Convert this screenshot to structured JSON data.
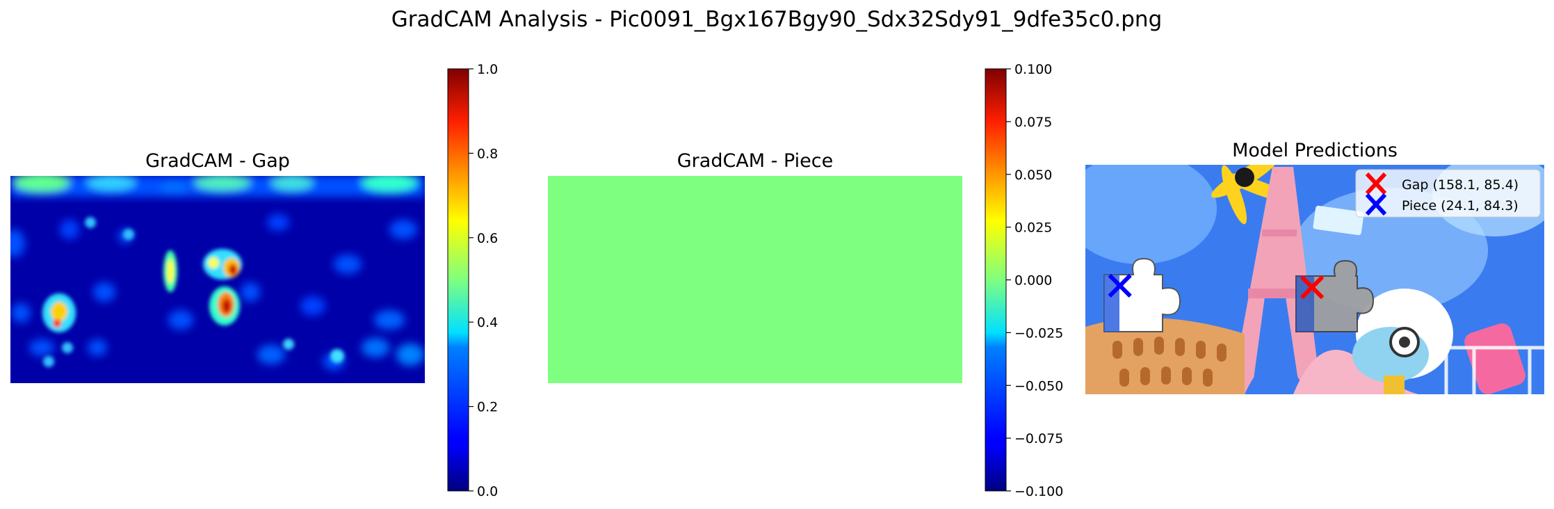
{
  "suptitle": "GradCAM Analysis - Pic0091_Bgx167Bgy90_Sdx32Sdy91_9dfe35c0.png",
  "panels": {
    "gap": {
      "title": "GradCAM - Gap"
    },
    "piece": {
      "title": "GradCAM - Piece"
    },
    "pred": {
      "title": "Model Predictions"
    }
  },
  "colorbars": {
    "gap": {
      "ticks": [
        "1.0",
        "0.8",
        "0.6",
        "0.4",
        "0.2",
        "0.0"
      ]
    },
    "piece": {
      "ticks": [
        "0.100",
        "0.075",
        "0.050",
        "0.025",
        "0.000",
        "−0.025",
        "−0.050",
        "−0.075",
        "−0.100"
      ]
    }
  },
  "legend": {
    "gap_label": "Gap (158.1, 85.4)",
    "piece_label": "Piece (24.1, 84.3)"
  },
  "colors": {
    "gap_marker": "#ff0000",
    "piece_marker": "#0000ff",
    "piece_map_fill": "#7fff7f"
  },
  "chart_data": [
    {
      "type": "heatmap",
      "title": "GradCAM - Gap",
      "colormap": "jet",
      "vmin": 0.0,
      "vmax": 1.0,
      "colorbar_ticks": [
        0.0,
        0.2,
        0.4,
        0.6,
        0.8,
        1.0
      ],
      "hotspots_note": "mostly low activation (~0.1) with strong peaks near the middle-left"
    },
    {
      "type": "heatmap",
      "title": "GradCAM - Piece",
      "colormap": "jet",
      "vmin": -0.1,
      "vmax": 0.1,
      "uniform_value": 0.0,
      "colorbar_ticks": [
        -0.1,
        -0.075,
        -0.05,
        -0.025,
        0.0,
        0.025,
        0.05,
        0.075,
        0.1
      ]
    },
    {
      "type": "scatter",
      "title": "Model Predictions",
      "series": [
        {
          "name": "Gap (158.1, 85.4)",
          "x": [
            158.1
          ],
          "y": [
            85.4
          ],
          "marker": "x",
          "color": "#ff0000"
        },
        {
          "name": "Piece (24.1, 84.3)",
          "x": [
            24.1
          ],
          "y": [
            84.3
          ],
          "marker": "x",
          "color": "#0000ff"
        }
      ],
      "image_extent": [
        0,
        320,
        160,
        0
      ]
    }
  ]
}
